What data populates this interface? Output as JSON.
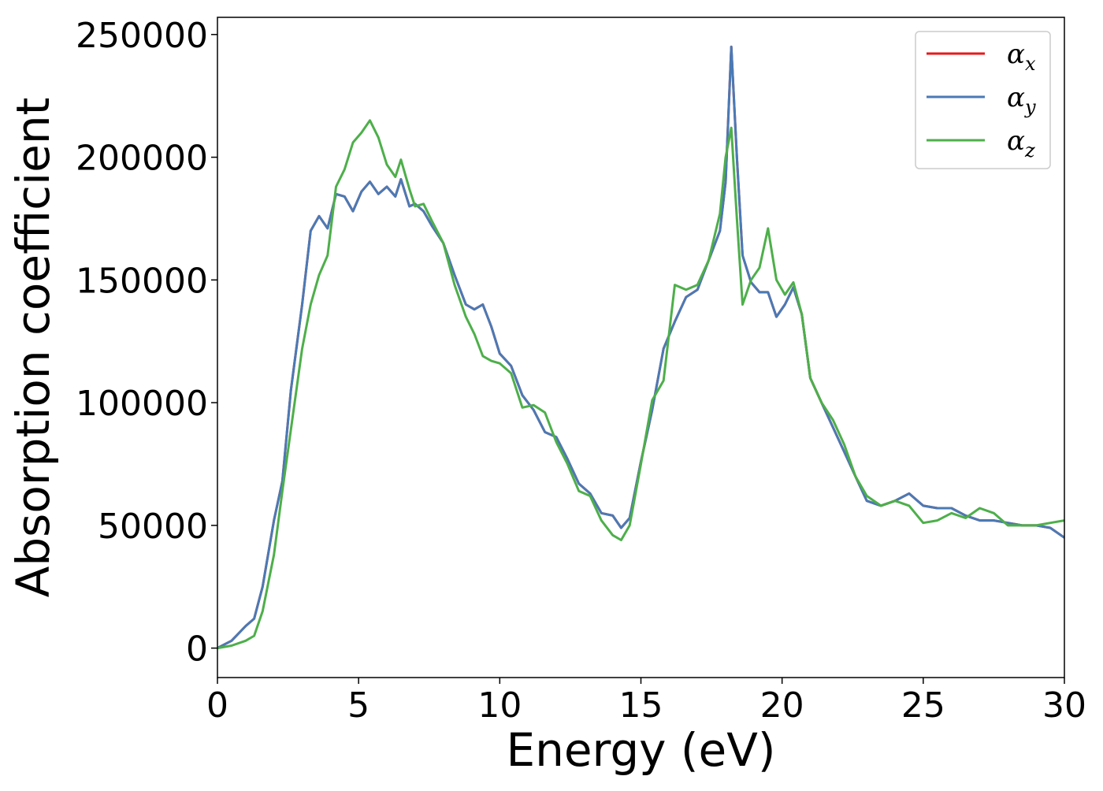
{
  "chart_data": {
    "type": "line",
    "title": "",
    "xlabel": "Energy (eV)",
    "ylabel": "Absorption coefficient",
    "xlim": [
      0,
      30
    ],
    "ylim": [
      -12000,
      257000
    ],
    "x_ticks": [
      0,
      5,
      10,
      15,
      20,
      25,
      30
    ],
    "x_tick_labels": [
      "0",
      "5",
      "10",
      "15",
      "20",
      "25",
      "30"
    ],
    "y_ticks": [
      0,
      50000,
      100000,
      150000,
      200000,
      250000
    ],
    "y_tick_labels": [
      "0",
      "50000",
      "100000",
      "150000",
      "200000",
      "250000"
    ],
    "grid": false,
    "legend_position": "top-right",
    "series": [
      {
        "name": "αx",
        "legend_symbol": "α",
        "legend_subscript": "x",
        "color": "#e41a1c",
        "x": [
          0,
          0.5,
          1.0,
          1.3,
          1.6,
          2.0,
          2.3,
          2.6,
          3.0,
          3.3,
          3.6,
          3.9,
          4.2,
          4.5,
          4.8,
          5.1,
          5.4,
          5.7,
          6.0,
          6.3,
          6.5,
          6.8,
          7.0,
          7.3,
          7.6,
          8.0,
          8.4,
          8.8,
          9.1,
          9.4,
          9.7,
          10.0,
          10.4,
          10.8,
          11.2,
          11.6,
          12.0,
          12.4,
          12.8,
          13.2,
          13.6,
          14.0,
          14.3,
          14.6,
          15.0,
          15.4,
          15.8,
          16.2,
          16.6,
          17.0,
          17.4,
          17.8,
          18.0,
          18.2,
          18.4,
          18.6,
          18.9,
          19.2,
          19.5,
          19.8,
          20.1,
          20.4,
          20.7,
          21.0,
          21.4,
          21.8,
          22.2,
          22.6,
          23.0,
          23.5,
          24.0,
          24.5,
          25.0,
          25.5,
          26.0,
          26.5,
          27.0,
          27.5,
          28.0,
          28.5,
          29.0,
          29.5,
          30.0
        ],
        "y": [
          0,
          3000,
          9000,
          12000,
          25000,
          52000,
          68000,
          105000,
          140000,
          170000,
          176000,
          171000,
          185000,
          184000,
          178000,
          186000,
          190000,
          185000,
          188000,
          184000,
          191000,
          180000,
          181000,
          178000,
          172000,
          165000,
          152000,
          140000,
          138000,
          140000,
          131000,
          120000,
          115000,
          103000,
          97000,
          88000,
          86000,
          77000,
          67000,
          63000,
          55000,
          54000,
          49000,
          53000,
          76000,
          97000,
          122000,
          133000,
          143000,
          146000,
          158000,
          170000,
          190000,
          245000,
          200000,
          160000,
          149000,
          145000,
          145000,
          135000,
          140000,
          147000,
          136000,
          110000,
          100000,
          90000,
          80000,
          70000,
          60000,
          58000,
          60000,
          63000,
          58000,
          57000,
          57000,
          54000,
          52000,
          52000,
          51000,
          50000,
          50000,
          49000,
          45000
        ]
      },
      {
        "name": "αy",
        "legend_symbol": "α",
        "legend_subscript": "y",
        "color": "#4a7ab5",
        "x": [
          0,
          0.5,
          1.0,
          1.3,
          1.6,
          2.0,
          2.3,
          2.6,
          3.0,
          3.3,
          3.6,
          3.9,
          4.2,
          4.5,
          4.8,
          5.1,
          5.4,
          5.7,
          6.0,
          6.3,
          6.5,
          6.8,
          7.0,
          7.3,
          7.6,
          8.0,
          8.4,
          8.8,
          9.1,
          9.4,
          9.7,
          10.0,
          10.4,
          10.8,
          11.2,
          11.6,
          12.0,
          12.4,
          12.8,
          13.2,
          13.6,
          14.0,
          14.3,
          14.6,
          15.0,
          15.4,
          15.8,
          16.2,
          16.6,
          17.0,
          17.4,
          17.8,
          18.0,
          18.2,
          18.4,
          18.6,
          18.9,
          19.2,
          19.5,
          19.8,
          20.1,
          20.4,
          20.7,
          21.0,
          21.4,
          21.8,
          22.2,
          22.6,
          23.0,
          23.5,
          24.0,
          24.5,
          25.0,
          25.5,
          26.0,
          26.5,
          27.0,
          27.5,
          28.0,
          28.5,
          29.0,
          29.5,
          30.0
        ],
        "y": [
          0,
          3000,
          9000,
          12000,
          25000,
          52000,
          68000,
          105000,
          140000,
          170000,
          176000,
          171000,
          185000,
          184000,
          178000,
          186000,
          190000,
          185000,
          188000,
          184000,
          191000,
          180000,
          181000,
          178000,
          172000,
          165000,
          152000,
          140000,
          138000,
          140000,
          131000,
          120000,
          115000,
          103000,
          97000,
          88000,
          86000,
          77000,
          67000,
          63000,
          55000,
          54000,
          49000,
          53000,
          76000,
          97000,
          122000,
          133000,
          143000,
          146000,
          158000,
          170000,
          190000,
          245000,
          200000,
          160000,
          149000,
          145000,
          145000,
          135000,
          140000,
          147000,
          136000,
          110000,
          100000,
          90000,
          80000,
          70000,
          60000,
          58000,
          60000,
          63000,
          58000,
          57000,
          57000,
          54000,
          52000,
          52000,
          51000,
          50000,
          50000,
          49000,
          45000
        ]
      },
      {
        "name": "αz",
        "legend_symbol": "α",
        "legend_subscript": "z",
        "color": "#4daf4a",
        "x": [
          0,
          0.5,
          1.0,
          1.3,
          1.6,
          2.0,
          2.3,
          2.6,
          3.0,
          3.3,
          3.6,
          3.9,
          4.2,
          4.5,
          4.8,
          5.1,
          5.4,
          5.7,
          6.0,
          6.3,
          6.5,
          6.8,
          7.0,
          7.3,
          7.6,
          8.0,
          8.4,
          8.8,
          9.1,
          9.4,
          9.7,
          10.0,
          10.4,
          10.8,
          11.2,
          11.6,
          12.0,
          12.4,
          12.8,
          13.2,
          13.6,
          14.0,
          14.3,
          14.6,
          15.0,
          15.4,
          15.8,
          16.2,
          16.6,
          17.0,
          17.4,
          17.8,
          18.0,
          18.2,
          18.4,
          18.6,
          18.9,
          19.2,
          19.5,
          19.8,
          20.1,
          20.4,
          20.7,
          21.0,
          21.4,
          21.8,
          22.2,
          22.6,
          23.0,
          23.5,
          24.0,
          24.5,
          25.0,
          25.5,
          26.0,
          26.5,
          27.0,
          27.5,
          28.0,
          28.5,
          29.0,
          29.5,
          30.0
        ],
        "y": [
          0,
          1000,
          3000,
          5000,
          15000,
          38000,
          64000,
          89000,
          122000,
          140000,
          152000,
          160000,
          188000,
          195000,
          206000,
          210000,
          215000,
          208000,
          197000,
          192000,
          199000,
          187000,
          180000,
          181000,
          174000,
          165000,
          148000,
          135000,
          128000,
          119000,
          117000,
          116000,
          112000,
          98000,
          99000,
          96000,
          84000,
          75000,
          64000,
          62000,
          52000,
          46000,
          44000,
          50000,
          75000,
          101000,
          109000,
          148000,
          146000,
          148000,
          158000,
          177000,
          200000,
          212000,
          175000,
          140000,
          150000,
          155000,
          171000,
          150000,
          144000,
          149000,
          136000,
          110000,
          100000,
          93000,
          83000,
          70000,
          62000,
          58000,
          60000,
          58000,
          51000,
          52000,
          55000,
          53000,
          57000,
          55000,
          50000,
          50000,
          50000,
          51000,
          52000
        ]
      }
    ]
  }
}
